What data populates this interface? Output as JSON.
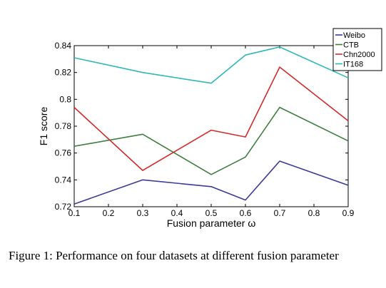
{
  "chart_data": {
    "type": "line",
    "title": "",
    "xlabel": "Fusion parameter ω",
    "ylabel": "F1 score",
    "x": [
      0.1,
      0.3,
      0.5,
      0.6,
      0.7,
      0.9
    ],
    "xticks": [
      "0.1",
      "0.2",
      "0.3",
      "0.4",
      "0.5",
      "0.6",
      "0.7",
      "0.8",
      "0.9"
    ],
    "yticks": [
      "0.72",
      "0.74",
      "0.76",
      "0.78",
      "0.8",
      "0.82",
      "0.84"
    ],
    "xlim": [
      0.1,
      0.9
    ],
    "ylim": [
      0.72,
      0.84
    ],
    "grid": false,
    "legend_position": "top-right",
    "series": [
      {
        "name": "Weibo",
        "color": "#3b3b9a",
        "values": [
          0.722,
          0.74,
          0.735,
          0.725,
          0.754,
          0.736
        ]
      },
      {
        "name": "CTB",
        "color": "#3e7f3e",
        "values": [
          0.765,
          0.774,
          0.744,
          0.757,
          0.794,
          0.769
        ]
      },
      {
        "name": "Chn2000",
        "color": "#d42a2a",
        "values": [
          0.794,
          0.747,
          0.777,
          0.772,
          0.824,
          0.784
        ]
      },
      {
        "name": "IT168",
        "color": "#2fb8b8",
        "values": [
          0.831,
          0.82,
          0.812,
          0.833,
          0.839,
          0.816
        ]
      }
    ]
  },
  "caption": "Figure 1: Performance on four datasets at different fusion parameter"
}
